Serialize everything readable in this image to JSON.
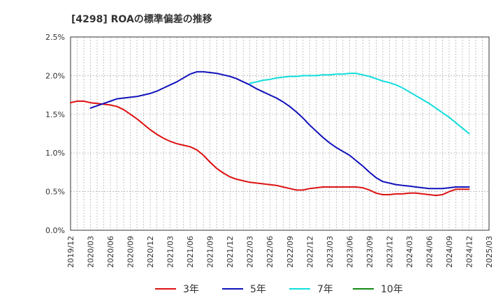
{
  "chart_data": {
    "type": "line",
    "title": "[4298]  ROAの標準偏差の推移",
    "xlabel": "",
    "ylabel": "",
    "ylim": [
      0,
      2.5
    ],
    "y_ticks": [
      "0.0%",
      "0.5%",
      "1.0%",
      "1.5%",
      "2.0%",
      "2.5%"
    ],
    "x_ticks": [
      "2019/12",
      "2020/03",
      "2020/06",
      "2020/09",
      "2020/12",
      "2021/03",
      "2021/06",
      "2021/09",
      "2021/12",
      "2022/03",
      "2022/06",
      "2022/09",
      "2022/12",
      "2023/03",
      "2023/06",
      "2023/09",
      "2023/12",
      "2024/03",
      "2024/06",
      "2024/09",
      "2024/12",
      "2025/03"
    ],
    "grid": true,
    "legend_position": "bottom",
    "series": [
      {
        "name": "3年",
        "color": "#dd1111",
        "x": [
          "2019/12",
          "2020/01",
          "2020/02",
          "2020/03",
          "2020/04",
          "2020/05",
          "2020/06",
          "2020/07",
          "2020/08",
          "2020/09",
          "2020/10",
          "2020/11",
          "2020/12",
          "2021/01",
          "2021/02",
          "2021/03",
          "2021/04",
          "2021/05",
          "2021/06",
          "2021/07",
          "2021/08",
          "2021/09",
          "2021/10",
          "2021/11",
          "2021/12",
          "2022/01",
          "2022/02",
          "2022/03",
          "2022/04",
          "2022/05",
          "2022/06",
          "2022/07",
          "2022/08",
          "2022/09",
          "2022/10",
          "2022/11",
          "2022/12",
          "2023/01",
          "2023/02",
          "2023/03",
          "2023/04",
          "2023/05",
          "2023/06",
          "2023/07",
          "2023/08",
          "2023/09",
          "2023/10",
          "2023/11",
          "2023/12",
          "2024/01",
          "2024/02",
          "2024/03",
          "2024/04",
          "2024/05",
          "2024/06",
          "2024/07",
          "2024/08",
          "2024/09",
          "2024/10",
          "2024/11",
          "2024/12"
        ],
        "values": [
          1.65,
          1.67,
          1.67,
          1.65,
          1.64,
          1.63,
          1.62,
          1.6,
          1.56,
          1.5,
          1.44,
          1.37,
          1.3,
          1.24,
          1.19,
          1.15,
          1.12,
          1.1,
          1.08,
          1.04,
          0.97,
          0.88,
          0.8,
          0.74,
          0.69,
          0.66,
          0.64,
          0.62,
          0.61,
          0.6,
          0.59,
          0.58,
          0.56,
          0.54,
          0.52,
          0.52,
          0.54,
          0.55,
          0.56,
          0.56,
          0.56,
          0.56,
          0.56,
          0.56,
          0.55,
          0.52,
          0.48,
          0.46,
          0.46,
          0.47,
          0.47,
          0.48,
          0.48,
          0.47,
          0.46,
          0.45,
          0.46,
          0.5,
          0.53,
          0.53,
          0.53
        ]
      },
      {
        "name": "5年",
        "color": "#1111bb",
        "x": [
          "2020/03",
          "2020/04",
          "2020/05",
          "2020/06",
          "2020/07",
          "2020/08",
          "2020/09",
          "2020/10",
          "2020/11",
          "2020/12",
          "2021/01",
          "2021/02",
          "2021/03",
          "2021/04",
          "2021/05",
          "2021/06",
          "2021/07",
          "2021/08",
          "2021/09",
          "2021/10",
          "2021/11",
          "2021/12",
          "2022/01",
          "2022/02",
          "2022/03",
          "2022/04",
          "2022/05",
          "2022/06",
          "2022/07",
          "2022/08",
          "2022/09",
          "2022/10",
          "2022/11",
          "2022/12",
          "2023/01",
          "2023/02",
          "2023/03",
          "2023/04",
          "2023/05",
          "2023/06",
          "2023/07",
          "2023/08",
          "2023/09",
          "2023/10",
          "2023/11",
          "2023/12",
          "2024/01",
          "2024/02",
          "2024/03",
          "2024/04",
          "2024/05",
          "2024/06",
          "2024/07",
          "2024/08",
          "2024/09",
          "2024/10",
          "2024/11",
          "2024/12"
        ],
        "values": [
          1.58,
          1.61,
          1.64,
          1.67,
          1.7,
          1.71,
          1.72,
          1.73,
          1.75,
          1.77,
          1.8,
          1.84,
          1.88,
          1.92,
          1.97,
          2.02,
          2.05,
          2.05,
          2.04,
          2.03,
          2.01,
          1.99,
          1.96,
          1.92,
          1.88,
          1.83,
          1.79,
          1.75,
          1.71,
          1.66,
          1.6,
          1.53,
          1.45,
          1.36,
          1.28,
          1.2,
          1.13,
          1.07,
          1.02,
          0.97,
          0.9,
          0.83,
          0.75,
          0.68,
          0.63,
          0.61,
          0.59,
          0.58,
          0.57,
          0.56,
          0.55,
          0.54,
          0.54,
          0.54,
          0.55,
          0.56,
          0.56,
          0.56
        ]
      },
      {
        "name": "7年",
        "color": "#11dddd",
        "x": [
          "2022/03",
          "2022/04",
          "2022/05",
          "2022/06",
          "2022/07",
          "2022/08",
          "2022/09",
          "2022/10",
          "2022/11",
          "2022/12",
          "2023/01",
          "2023/02",
          "2023/03",
          "2023/04",
          "2023/05",
          "2023/06",
          "2023/07",
          "2023/08",
          "2023/09",
          "2023/10",
          "2023/11",
          "2023/12",
          "2024/01",
          "2024/02",
          "2024/03",
          "2024/04",
          "2024/05",
          "2024/06",
          "2024/07",
          "2024/08",
          "2024/09",
          "2024/10",
          "2024/11",
          "2024/12"
        ],
        "values": [
          1.9,
          1.92,
          1.94,
          1.95,
          1.97,
          1.98,
          1.99,
          1.99,
          2.0,
          2.0,
          2.0,
          2.01,
          2.01,
          2.02,
          2.02,
          2.03,
          2.03,
          2.01,
          1.99,
          1.96,
          1.93,
          1.91,
          1.88,
          1.84,
          1.79,
          1.74,
          1.69,
          1.64,
          1.58,
          1.52,
          1.46,
          1.39,
          1.32,
          1.25
        ]
      },
      {
        "name": "10年",
        "color": "#118811",
        "x": [],
        "values": []
      }
    ]
  }
}
